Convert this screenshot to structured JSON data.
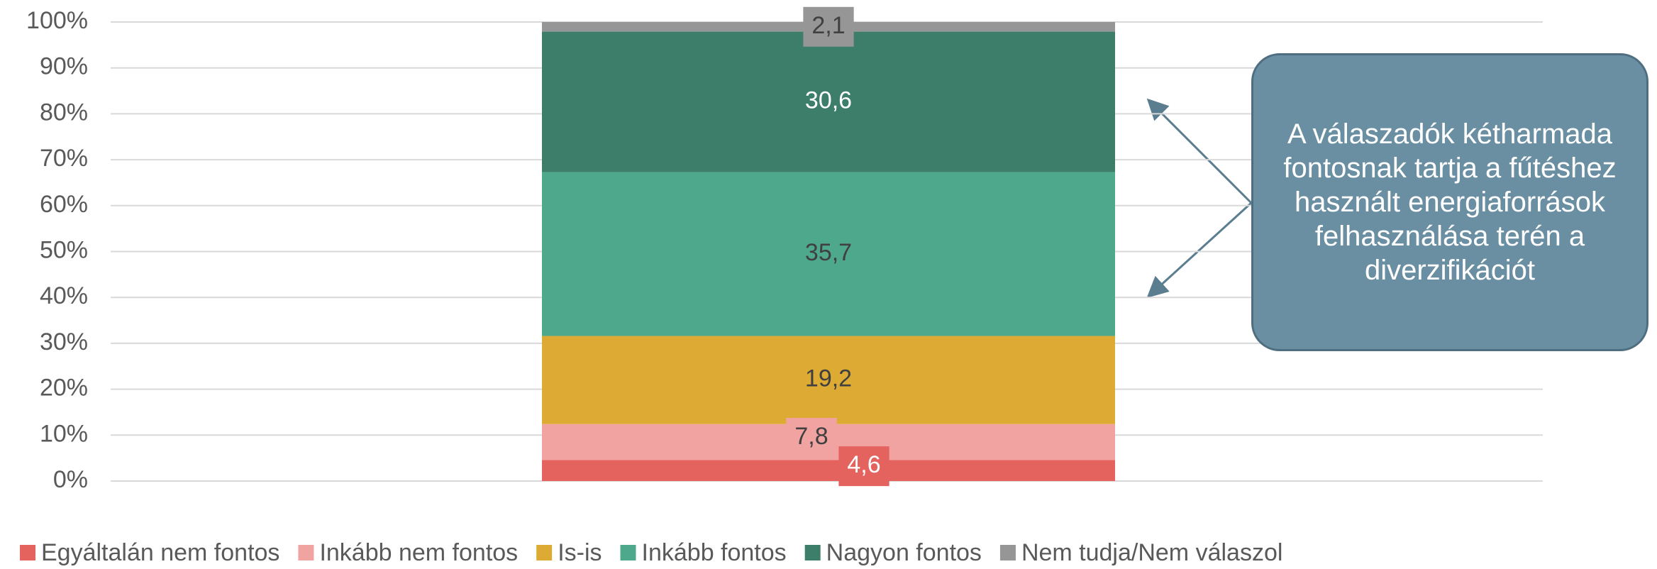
{
  "chart_data": {
    "type": "stacked_bar",
    "categories": [
      null
    ],
    "series": [
      {
        "name": "Egyáltalán nem fontos",
        "color": "#e5635f",
        "values": [
          4.6
        ],
        "value_labels": [
          "4,6"
        ],
        "label_color": "#ffffff"
      },
      {
        "name": "Inkább nem fontos",
        "color": "#f0a3a1",
        "values": [
          7.8
        ],
        "value_labels": [
          "7,8"
        ],
        "label_color": "#404040"
      },
      {
        "name": "Is-is",
        "color": "#ddab34",
        "values": [
          19.2
        ],
        "value_labels": [
          "19,2"
        ],
        "label_color": "#404040"
      },
      {
        "name": "Inkább fontos",
        "color": "#4ea98c",
        "values": [
          35.7
        ],
        "value_labels": [
          "35,7"
        ],
        "label_color": "#404040"
      },
      {
        "name": "Nagyon fontos",
        "color": "#3c7e69",
        "values": [
          30.6
        ],
        "value_labels": [
          "30,6"
        ],
        "label_color": "#ffffff"
      },
      {
        "name": "Nem tudja/Nem válaszol",
        "color": "#969696",
        "values": [
          2.1
        ],
        "value_labels": [
          "2,1"
        ],
        "label_color": "#404040"
      }
    ],
    "ylim": [
      0,
      100
    ],
    "yticks": [
      {
        "value": 0,
        "label": "0%"
      },
      {
        "value": 10,
        "label": "10%"
      },
      {
        "value": 20,
        "label": "20%"
      },
      {
        "value": 30,
        "label": "30%"
      },
      {
        "value": 40,
        "label": "40%"
      },
      {
        "value": 50,
        "label": "50%"
      },
      {
        "value": 60,
        "label": "60%"
      },
      {
        "value": 70,
        "label": "70%"
      },
      {
        "value": 80,
        "label": "80%"
      },
      {
        "value": 90,
        "label": "90%"
      },
      {
        "value": 100,
        "label": "100%"
      }
    ],
    "grid": true,
    "legend": "bottom",
    "annotation": "A válaszadók kétharmada fontosnak tartja a fűtéshez használt energiaforrások felhasználása terén a diverzifikációt"
  }
}
